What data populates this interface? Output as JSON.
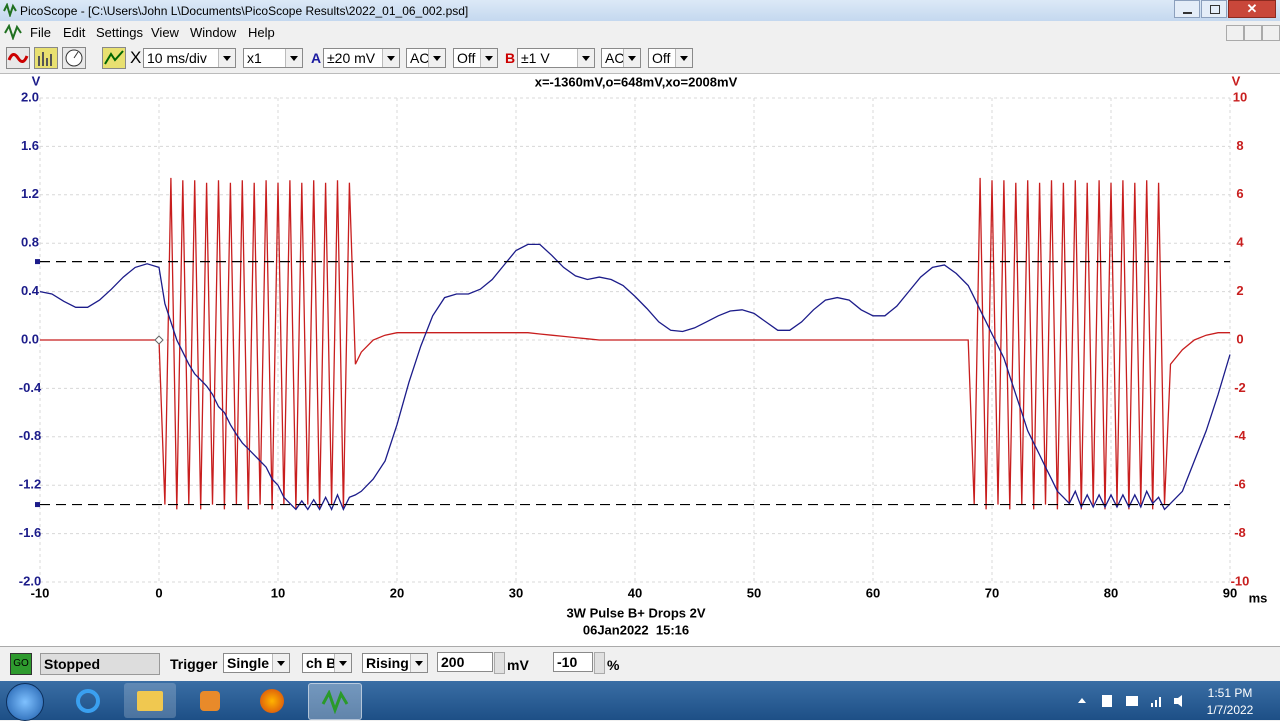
{
  "window": {
    "title": "PicoScope - [C:\\Users\\John L\\Documents\\PicoScope Results\\2022_01_06_002.psd]"
  },
  "menu": [
    "File",
    "Edit",
    "Settings",
    "View",
    "Window",
    "Help"
  ],
  "toolbar": {
    "zoom_icon": "X",
    "timebase": "10 ms/div",
    "zoom": "x1",
    "channel_a": {
      "label": "A",
      "range": "±20 mV",
      "coupling": "AC",
      "filter": "Off"
    },
    "channel_b": {
      "label": "B",
      "range": "±1 V",
      "coupling": "AC",
      "filter": "Off"
    }
  },
  "chart_data": {
    "type": "line",
    "cursor_readout": "x=-1360mV,o=648mV,xo=2008mV",
    "title": "3W Pulse B+ Drops 2V",
    "subtitle": "06Jan2022  15:16",
    "ylabel": "V",
    "y2label": "V",
    "xlabel": "ms",
    "x": [
      -10,
      -9,
      -8,
      -7,
      -6,
      -5,
      -4,
      -3,
      -2,
      -1,
      0,
      0.5,
      1,
      1.5,
      2,
      2.5,
      3,
      3.5,
      4,
      4.5,
      5,
      5.5,
      6,
      6.5,
      7,
      7.5,
      8,
      8.5,
      9,
      9.5,
      10,
      10.5,
      11,
      11.5,
      12,
      12.5,
      13,
      13.5,
      14,
      14.5,
      15,
      15.5,
      16,
      16.5,
      17,
      18,
      19,
      20,
      21,
      22,
      23,
      24,
      25,
      26,
      27,
      28,
      29,
      30,
      31,
      32,
      33,
      34,
      35,
      36,
      37,
      38,
      39,
      40,
      41,
      42,
      43,
      44,
      45,
      46,
      47,
      48,
      49,
      50,
      51,
      52,
      53,
      54,
      55,
      56,
      57,
      58,
      59,
      60,
      61,
      62,
      63,
      64,
      65,
      66,
      67,
      68,
      68.5,
      69,
      69.5,
      70,
      70.5,
      71,
      71.5,
      72,
      72.5,
      73,
      73.5,
      74,
      74.5,
      75,
      75.5,
      76,
      76.5,
      77,
      77.5,
      78,
      78.5,
      79,
      79.5,
      80,
      80.5,
      81,
      81.5,
      82,
      82.5,
      83,
      83.5,
      84,
      84.5,
      85,
      86,
      87,
      88,
      89,
      90
    ],
    "series": [
      {
        "color": "#1c1c8a",
        "values": [
          0.4,
          0.38,
          0.32,
          0.27,
          0.27,
          0.33,
          0.42,
          0.52,
          0.6,
          0.63,
          0.6,
          0.3,
          0.15,
          0,
          -0.1,
          -0.2,
          -0.28,
          -0.33,
          -0.38,
          -0.45,
          -0.55,
          -0.6,
          -0.7,
          -0.78,
          -0.85,
          -0.9,
          -0.95,
          -1,
          -1.05,
          -1.15,
          -1.2,
          -1.3,
          -1.35,
          -1.4,
          -1.33,
          -1.4,
          -1.32,
          -1.4,
          -1.3,
          -1.4,
          -1.28,
          -1.4,
          -1.3,
          -1.28,
          -1.25,
          -1.15,
          -1,
          -0.7,
          -0.35,
          -0.05,
          0.2,
          0.35,
          0.38,
          0.38,
          0.42,
          0.5,
          0.62,
          0.74,
          0.79,
          0.79,
          0.7,
          0.6,
          0.53,
          0.5,
          0.52,
          0.5,
          0.45,
          0.36,
          0.26,
          0.15,
          0.08,
          0.07,
          0.1,
          0.15,
          0.2,
          0.24,
          0.25,
          0.22,
          0.15,
          0.08,
          0.08,
          0.15,
          0.25,
          0.33,
          0.35,
          0.33,
          0.25,
          0.2,
          0.2,
          0.28,
          0.4,
          0.52,
          0.6,
          0.62,
          0.55,
          0.45,
          0.35,
          0.25,
          0.15,
          0.05,
          -0.05,
          -0.15,
          -0.3,
          -0.45,
          -0.6,
          -0.75,
          -0.85,
          -0.95,
          -1.05,
          -1.15,
          -1.25,
          -1.3,
          -1.35,
          -1.25,
          -1.38,
          -1.28,
          -1.38,
          -1.28,
          -1.38,
          -1.28,
          -1.38,
          -1.28,
          -1.38,
          -1.28,
          -1.38,
          -1.25,
          -1.35,
          -1.3,
          -1.4,
          -1.35,
          -1.25,
          -1,
          -0.75,
          -0.45,
          -0.12
        ]
      },
      {
        "color": "#c81e1e",
        "axis": "y2",
        "values": [
          0,
          0,
          0,
          0,
          0,
          0,
          0,
          0,
          0,
          0,
          0,
          -6.8,
          6.7,
          -7,
          6.6,
          -6.8,
          6.6,
          -7,
          6.5,
          -6.8,
          6.6,
          -7,
          6.5,
          -6.8,
          6.6,
          -7,
          6.5,
          -6.8,
          6.6,
          -7,
          6.5,
          -6.8,
          6.6,
          -7,
          6.5,
          -6.8,
          6.6,
          -7,
          6.5,
          -6.8,
          6.6,
          -7,
          6.5,
          -1,
          -0.5,
          0,
          0.2,
          0.3,
          0.3,
          0.3,
          0.3,
          0.3,
          0.3,
          0.3,
          0.3,
          0.3,
          0.3,
          0.3,
          0.3,
          0.25,
          0.2,
          0.15,
          0.1,
          0.05,
          0,
          0,
          0,
          0,
          0,
          0,
          0,
          0,
          0,
          0,
          0,
          0,
          0,
          0,
          0,
          0,
          0,
          0,
          0,
          0,
          0,
          0,
          0,
          0,
          0,
          0,
          0,
          0,
          0,
          0,
          0,
          0,
          -6.8,
          6.7,
          -7,
          6.6,
          -6.8,
          6.6,
          -7,
          6.5,
          -6.8,
          6.6,
          -7,
          6.5,
          -6.8,
          6.6,
          -7,
          6.5,
          -6.8,
          6.6,
          -7,
          6.5,
          -6.8,
          6.6,
          -7,
          6.5,
          -6.8,
          6.6,
          -7,
          6.5,
          -6.8,
          6.6,
          -7,
          6.5,
          -6.8,
          -1,
          -0.4,
          0,
          0.2,
          0.3,
          0.3
        ]
      }
    ],
    "xlim": [
      -10,
      90
    ],
    "xticks": [
      -10,
      0,
      10,
      20,
      30,
      40,
      50,
      60,
      70,
      80,
      90
    ],
    "ylim": [
      -2,
      2
    ],
    "yticks": [
      {
        "value": 2,
        "label": "2.0"
      },
      1.6,
      1.2,
      0.8,
      0.4,
      {
        "value": 0,
        "label": "0.0"
      },
      -0.4,
      -0.8,
      -1.2,
      -1.6,
      {
        "value": -2,
        "label": "-2.0"
      }
    ],
    "y2lim": [
      -10,
      10
    ],
    "y2ticks": [
      10,
      8,
      6,
      4,
      2,
      0,
      -2,
      -4,
      -6,
      -8,
      -10
    ],
    "grid": true,
    "cursors": [
      0.648,
      -1.36
    ]
  },
  "status_bar": {
    "go_button": "GO",
    "state": "Stopped",
    "trigger_label": "Trigger",
    "trigger_mode": "Single",
    "trigger_source": "ch B",
    "trigger_edge": "Rising",
    "threshold": "200",
    "threshold_unit": "mV",
    "pre_trigger": "-10",
    "pre_trigger_unit": "%"
  },
  "taskbar": {
    "time": "1:51 PM",
    "date": "1/7/2022"
  }
}
